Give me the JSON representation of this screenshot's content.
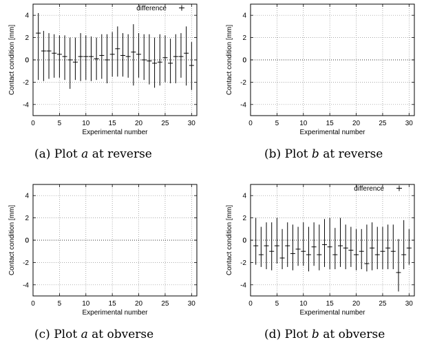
{
  "chart_data": [
    {
      "type": "scatter",
      "panel_id": "a",
      "caption": {
        "label": "(a)",
        "text_before": "Plot",
        "var": "a",
        "text_after": "at reverse"
      },
      "xlabel": "Experimental number",
      "ylabel": "Contact condition [mm]",
      "xlim": [
        0,
        31
      ],
      "ylim": [
        -5,
        5
      ],
      "xticks": [
        0,
        5,
        10,
        15,
        20,
        25,
        30
      ],
      "yticks": [
        -4,
        -2,
        0,
        2,
        4
      ],
      "grid": true,
      "legend": {
        "show": true,
        "position": "top-right",
        "label": "difference"
      },
      "series": [
        {
          "name": "difference",
          "x": [
            1,
            2,
            3,
            4,
            5,
            6,
            7,
            8,
            9,
            10,
            11,
            12,
            13,
            14,
            15,
            16,
            17,
            18,
            19,
            20,
            21,
            22,
            23,
            24,
            25,
            26,
            27,
            28,
            29,
            30
          ],
          "y": [
            2.4,
            0.8,
            0.8,
            0.6,
            0.5,
            0.3,
            0.0,
            -0.2,
            0.3,
            0.3,
            0.3,
            0.1,
            0.4,
            0.0,
            0.5,
            1.0,
            0.4,
            0.3,
            0.7,
            0.5,
            0.0,
            -0.1,
            -0.3,
            -0.2,
            0.2,
            -0.3,
            0.3,
            0.3,
            0.6,
            -0.5
          ],
          "ylow": [
            -1.8,
            -1.9,
            -1.7,
            -1.6,
            -1.6,
            -1.8,
            -2.6,
            -1.8,
            -1.9,
            -1.8,
            -1.9,
            -1.8,
            -1.7,
            -2.1,
            -1.5,
            -1.5,
            -1.5,
            -1.6,
            -2.3,
            -1.6,
            -1.8,
            -2.2,
            -2.5,
            -2.3,
            -2.0,
            -2.1,
            -2.1,
            -1.6,
            -2.3,
            -2.7
          ],
          "yhigh": [
            4.2,
            2.6,
            2.4,
            2.3,
            2.2,
            2.2,
            2.0,
            2.0,
            2.4,
            2.2,
            2.1,
            2.0,
            2.3,
            2.3,
            2.5,
            3.0,
            2.4,
            2.3,
            3.2,
            2.4,
            2.3,
            2.3,
            2.0,
            2.3,
            2.2,
            1.9,
            2.3,
            2.4,
            3.0,
            1.6
          ]
        }
      ]
    },
    {
      "type": "scatter",
      "panel_id": "b",
      "caption": {
        "label": "(b)",
        "text_before": "Plot",
        "var": "b",
        "text_after": "at reverse"
      },
      "xlabel": "Experimental number",
      "ylabel": "Contact condition [mm]",
      "xlim": [
        0,
        31
      ],
      "ylim": [
        -5,
        5
      ],
      "xticks": [
        0,
        5,
        10,
        15,
        20,
        25,
        30
      ],
      "yticks": [
        -4,
        -2,
        0,
        2,
        4
      ],
      "grid": true,
      "legend": {
        "show": false
      },
      "series": []
    },
    {
      "type": "scatter",
      "panel_id": "c",
      "caption": {
        "label": "(c)",
        "text_before": "Plot",
        "var": "a",
        "text_after": "at obverse"
      },
      "xlabel": "Experimental number",
      "ylabel": "Contact condition [mm]",
      "xlim": [
        0,
        31
      ],
      "ylim": [
        -5,
        5
      ],
      "xticks": [
        0,
        5,
        10,
        15,
        20,
        25,
        30
      ],
      "yticks": [
        -4,
        -2,
        0,
        2,
        4
      ],
      "grid": true,
      "legend": {
        "show": false
      },
      "series": []
    },
    {
      "type": "scatter",
      "panel_id": "d",
      "caption": {
        "label": "(d)",
        "text_before": "Plot",
        "var": "b",
        "text_after": "at obverse"
      },
      "xlabel": "Experimental number",
      "ylabel": "Contact condition [mm]",
      "xlim": [
        0,
        31
      ],
      "ylim": [
        -5,
        5
      ],
      "xticks": [
        0,
        5,
        10,
        15,
        20,
        25,
        30
      ],
      "yticks": [
        -4,
        -2,
        0,
        2,
        4
      ],
      "grid": true,
      "legend": {
        "show": true,
        "position": "top-right",
        "label": "difference"
      },
      "series": [
        {
          "name": "difference",
          "x": [
            1,
            2,
            3,
            4,
            5,
            6,
            7,
            8,
            9,
            10,
            11,
            12,
            13,
            14,
            15,
            16,
            17,
            18,
            19,
            20,
            21,
            22,
            23,
            24,
            25,
            26,
            27,
            28,
            29,
            30
          ],
          "y": [
            -0.5,
            -1.3,
            -0.5,
            -1.0,
            -0.5,
            -1.6,
            -0.5,
            -1.2,
            -0.8,
            -1.0,
            -1.3,
            -0.6,
            -1.3,
            -0.4,
            -0.6,
            -1.3,
            -0.5,
            -0.7,
            -0.9,
            -1.3,
            -1.0,
            -2.1,
            -0.7,
            -1.3,
            -1.0,
            -0.7,
            -1.0,
            -2.9,
            -1.3,
            -0.7
          ],
          "ylow": [
            -2.2,
            -2.4,
            -2.6,
            -2.7,
            -2.1,
            -2.6,
            -2.4,
            -2.7,
            -2.3,
            -2.3,
            -2.8,
            -2.3,
            -2.7,
            -2.4,
            -2.6,
            -2.6,
            -2.4,
            -2.6,
            -2.4,
            -2.7,
            -2.6,
            -2.8,
            -2.7,
            -2.6,
            -2.6,
            -2.6,
            -2.6,
            -4.6,
            -2.6,
            -2.2
          ],
          "yhigh": [
            2.0,
            1.2,
            1.6,
            1.6,
            2.0,
            1.0,
            1.6,
            1.4,
            1.2,
            1.6,
            1.2,
            1.6,
            1.4,
            1.9,
            2.0,
            1.1,
            2.0,
            1.4,
            1.2,
            1.0,
            1.0,
            1.4,
            1.6,
            1.2,
            1.2,
            1.4,
            1.4,
            0.1,
            1.8,
            1.0
          ]
        }
      ]
    }
  ]
}
